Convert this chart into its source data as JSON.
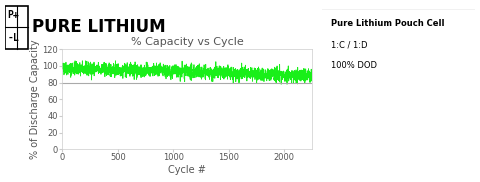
{
  "title": "% Capacity vs Cycle",
  "xlabel": "Cycle #",
  "ylabel": "% of Discharge Capacity",
  "xlim": [
    0,
    2250
  ],
  "ylim": [
    0,
    120
  ],
  "yticks": [
    0,
    20,
    40,
    60,
    80,
    100,
    120
  ],
  "xticks": [
    0,
    500,
    1000,
    1500,
    2000
  ],
  "line_color": "#00ee00",
  "hline_y": 80,
  "hline_color": "#aaaaaa",
  "n_cycles": 2250,
  "mean_start": 97,
  "mean_end": 88,
  "noise_amplitude": 4,
  "brand_name": "PURE LITHIUM",
  "legend_title": "Pure Lithium Pouch Cell",
  "legend_line1": "1:C / 1:D",
  "legend_line2": "100% DOD",
  "bg_color": "#ffffff",
  "axis_color": "#cccccc",
  "text_color": "#555555",
  "title_fontsize": 8,
  "label_fontsize": 7,
  "tick_fontsize": 6,
  "brand_fontsize": 12
}
